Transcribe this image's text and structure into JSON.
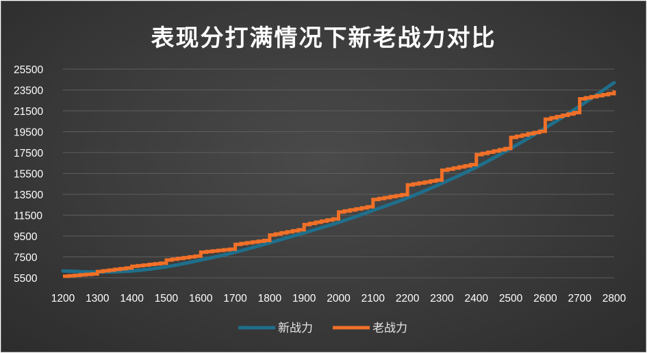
{
  "chart_data": {
    "type": "line",
    "title": "表现分打满情况下新老战力对比",
    "xlabel": "",
    "ylabel": "",
    "xlim": [
      1200,
      2800
    ],
    "ylim": [
      5500,
      25500
    ],
    "x_ticks": [
      "1200",
      "1300",
      "1400",
      "1500",
      "1600",
      "1700",
      "1800",
      "1900",
      "2000",
      "2100",
      "2200",
      "2300",
      "2400",
      "2500",
      "2600",
      "2700",
      "2800"
    ],
    "y_ticks": [
      "25500",
      "23500",
      "21500",
      "19500",
      "17500",
      "15500",
      "13500",
      "11500",
      "9500",
      "7500",
      "5500"
    ],
    "grid": "horizontal",
    "legend_position": "bottom",
    "series": [
      {
        "name": "新战力",
        "color": "#1f6f8b",
        "style": "smooth",
        "x": [
          1200,
          1300,
          1400,
          1500,
          1600,
          1700,
          1800,
          1900,
          2000,
          2100,
          2200,
          2300,
          2400,
          2500,
          2600,
          2700,
          2800
        ],
        "y": [
          6150,
          6050,
          6150,
          6550,
          7200,
          7950,
          8850,
          9800,
          10800,
          11950,
          13150,
          14550,
          16100,
          17900,
          19850,
          21950,
          24200
        ]
      },
      {
        "name": "老战力",
        "color": "#f07028",
        "style": "step",
        "x": [
          1200,
          1300,
          1400,
          1500,
          1600,
          1700,
          1800,
          1900,
          2000,
          2100,
          2200,
          2300,
          2400,
          2500,
          2600,
          2700,
          2800
        ],
        "y_start": [
          5650,
          6100,
          6600,
          7200,
          7950,
          8700,
          9600,
          10600,
          11800,
          13000,
          14400,
          15800,
          17300,
          18950,
          20700,
          22650,
          23450
        ],
        "y_end": [
          5900,
          6500,
          6950,
          7650,
          8300,
          9150,
          10200,
          11250,
          12400,
          13550,
          14950,
          16450,
          18000,
          19650,
          21450,
          23250,
          23450
        ]
      }
    ]
  }
}
